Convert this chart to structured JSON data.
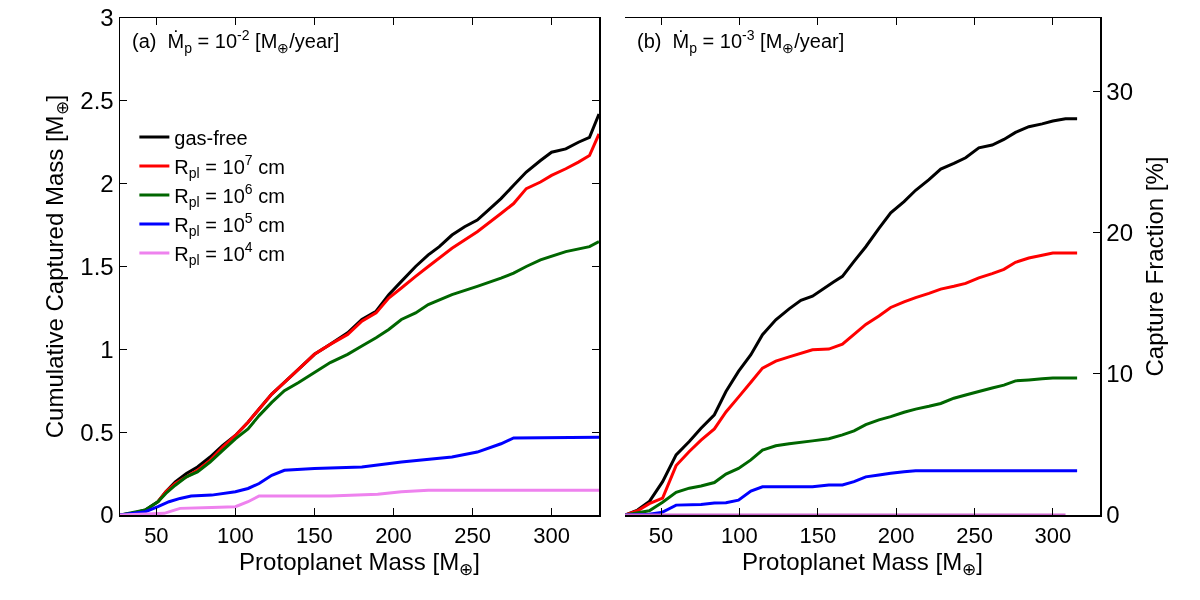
{
  "chart_data": [
    {
      "type": "line",
      "xlabel": "Protoplanet Mass [M$_{⊕}$]",
      "ylabel": "Cumulative Captured Mass [M$_{⊕}$]",
      "annotations": [
        "(a)  Ṁ$_{p}$ = 10$^{-2}$ [M$_{⊕}$/year]"
      ],
      "xlim": [
        27,
        330
      ],
      "xticks": [
        50,
        100,
        150,
        200,
        250,
        300
      ],
      "ylim": [
        0,
        3
      ],
      "yticks": [
        0,
        0.5,
        1,
        1.5,
        2,
        2.5,
        3
      ],
      "legend": "top left",
      "series": [
        {
          "name": "gas-free",
          "color": "#000000",
          "x": [
            27,
            35,
            43,
            51,
            56,
            62,
            69,
            76,
            84,
            92,
            100,
            108,
            115,
            123,
            131,
            140,
            150,
            160,
            171,
            180,
            189,
            197,
            205,
            214,
            222,
            229,
            237,
            245,
            253,
            260,
            268,
            276,
            284,
            293,
            300,
            309,
            317,
            324,
            330
          ],
          "values": [
            0,
            0.01,
            0.03,
            0.08,
            0.14,
            0.2,
            0.25,
            0.29,
            0.35,
            0.42,
            0.48,
            0.56,
            0.64,
            0.73,
            0.8,
            0.88,
            0.97,
            1.03,
            1.1,
            1.18,
            1.23,
            1.33,
            1.41,
            1.5,
            1.57,
            1.62,
            1.69,
            1.74,
            1.78,
            1.84,
            1.91,
            1.99,
            2.07,
            2.14,
            2.19,
            2.21,
            2.25,
            2.28,
            2.42
          ]
        },
        {
          "name": "R$_{pl}$ = 10$^{7}$ cm",
          "color": "#ff0000",
          "x": [
            51,
            56,
            62,
            69,
            76,
            84,
            92,
            100,
            108,
            115,
            123,
            131,
            140,
            150,
            160,
            171,
            180,
            189,
            197,
            205,
            214,
            222,
            237,
            253,
            268,
            276,
            284,
            293,
            300,
            309,
            317,
            324,
            330
          ],
          "values": [
            0.08,
            0.14,
            0.19,
            0.23,
            0.27,
            0.33,
            0.41,
            0.48,
            0.56,
            0.64,
            0.73,
            0.8,
            0.88,
            0.97,
            1.03,
            1.09,
            1.17,
            1.22,
            1.31,
            1.37,
            1.44,
            1.5,
            1.61,
            1.71,
            1.82,
            1.88,
            1.97,
            2.01,
            2.05,
            2.09,
            2.13,
            2.17,
            2.3
          ]
        },
        {
          "name": "R$_{pl}$ = 10$^{6}$ cm",
          "color": "#006600",
          "x": [
            27,
            43,
            51,
            56,
            62,
            69,
            76,
            84,
            92,
            100,
            108,
            115,
            123,
            131,
            140,
            150,
            160,
            171,
            180,
            189,
            197,
            205,
            214,
            222,
            237,
            253,
            268,
            276,
            284,
            293,
            309,
            324,
            330
          ],
          "values": [
            0,
            0.03,
            0.08,
            0.13,
            0.18,
            0.23,
            0.26,
            0.32,
            0.39,
            0.46,
            0.52,
            0.6,
            0.68,
            0.75,
            0.8,
            0.86,
            0.92,
            0.97,
            1.02,
            1.07,
            1.12,
            1.18,
            1.22,
            1.27,
            1.33,
            1.38,
            1.43,
            1.46,
            1.5,
            1.54,
            1.59,
            1.62,
            1.65
          ]
        },
        {
          "name": "R$_{pl}$ = 10$^{5}$ cm",
          "color": "#0000ff",
          "x": [
            27,
            43,
            51,
            58,
            65,
            72,
            85,
            100,
            108,
            115,
            123,
            131,
            150,
            180,
            205,
            237,
            253,
            268,
            276,
            330
          ],
          "values": [
            0,
            0.02,
            0.05,
            0.08,
            0.1,
            0.115,
            0.12,
            0.14,
            0.16,
            0.19,
            0.24,
            0.27,
            0.28,
            0.29,
            0.32,
            0.35,
            0.38,
            0.43,
            0.465,
            0.47
          ]
        },
        {
          "name": "R$_{pl}$ = 10$^{4}$ cm",
          "color": "#ee82ee",
          "x": [
            27,
            55,
            65,
            85,
            100,
            108,
            115,
            160,
            190,
            205,
            222,
            330
          ],
          "values": [
            0,
            0.01,
            0.04,
            0.045,
            0.05,
            0.08,
            0.115,
            0.115,
            0.125,
            0.14,
            0.15,
            0.15
          ]
        }
      ]
    },
    {
      "type": "line",
      "xlabel": "Protoplanet Mass [M$_{⊕}$]",
      "y2label": "Capture Fraction [%]",
      "annotations": [
        "(b)  Ṁ$_{p}$ = 10$^{-3}$ [M$_{⊕}$/year]"
      ],
      "xlim": [
        27,
        330
      ],
      "xticks": [
        50,
        100,
        150,
        200,
        250,
        300
      ],
      "y2lim": [
        0,
        35.2
      ],
      "y2ticks": [
        0,
        10,
        20,
        30
      ],
      "series": [
        {
          "color": "#000000",
          "axis": "y2",
          "x": [
            27,
            35,
            42.5,
            51,
            59.6,
            68,
            75.5,
            84,
            91.4,
            99.4,
            107.3,
            114.7,
            123.2,
            131.7,
            139.2,
            146.6,
            160,
            165.7,
            173.1,
            180.6,
            189,
            196.5,
            205,
            212.4,
            220.9,
            228.4,
            236.8,
            244.3,
            252.7,
            261.2,
            268.7,
            276.1,
            284.6,
            293.1,
            299.9,
            308,
            315.4
          ],
          "values": [
            0,
            0.35,
            0.95,
            2.36,
            4.26,
            5.2,
            6.15,
            7.1,
            8.75,
            10.17,
            11.35,
            12.77,
            13.83,
            14.6,
            15.2,
            15.5,
            16.5,
            16.9,
            17.96,
            19,
            20.3,
            21.4,
            22.2,
            23,
            23.75,
            24.5,
            24.9,
            25.3,
            26,
            26.2,
            26.6,
            27.1,
            27.5,
            27.7,
            27.9,
            28.06,
            28.06
          ]
        },
        {
          "color": "#ff0000",
          "axis": "y2",
          "x": [
            27,
            35,
            42.5,
            51,
            59.6,
            68,
            75.5,
            84,
            91.4,
            99.4,
            107.3,
            114.7,
            123.2,
            131.7,
            146.6,
            157,
            165.7,
            173.1,
            180.6,
            189,
            196.5,
            205,
            212.4,
            220.9,
            228.4,
            236.8,
            244.3,
            252.7,
            261.2,
            268.7,
            276.1,
            284.6,
            293.1,
            299.9,
            315.4
          ],
          "values": [
            0,
            0.3,
            0.8,
            1.2,
            3.5,
            4.5,
            5.3,
            6.1,
            7.3,
            8.35,
            9.4,
            10.4,
            10.9,
            11.2,
            11.7,
            11.75,
            12.1,
            12.8,
            13.5,
            14.1,
            14.7,
            15.1,
            15.4,
            15.7,
            16,
            16.2,
            16.4,
            16.8,
            17.1,
            17.4,
            17.9,
            18.2,
            18.4,
            18.56,
            18.56
          ]
        },
        {
          "color": "#006600",
          "axis": "y2",
          "x": [
            27,
            42.5,
            51,
            59.6,
            68,
            75.5,
            84,
            91.4,
            99.4,
            107.3,
            114.7,
            123.2,
            131.7,
            146.6,
            157,
            165.7,
            173.1,
            180.6,
            189,
            196.5,
            205,
            212.4,
            220.9,
            228.4,
            236.8,
            244.3,
            252.7,
            261.2,
            268.7,
            276.1,
            284.6,
            293.1,
            299.9,
            315.4
          ],
          "values": [
            0,
            0.3,
            0.9,
            1.6,
            1.9,
            2.05,
            2.3,
            2.9,
            3.3,
            3.9,
            4.6,
            4.9,
            5.05,
            5.25,
            5.4,
            5.67,
            5.96,
            6.4,
            6.74,
            6.97,
            7.28,
            7.5,
            7.7,
            7.9,
            8.27,
            8.5,
            8.75,
            9,
            9.2,
            9.5,
            9.57,
            9.65,
            9.7,
            9.7
          ]
        },
        {
          "color": "#0000ff",
          "axis": "y2",
          "x": [
            27,
            42.5,
            51,
            59.6,
            75.5,
            84,
            91.4,
            99.4,
            107.3,
            114.7,
            131.7,
            146.6,
            157,
            165.7,
            173.1,
            180.6,
            189,
            196.5,
            205,
            212.4,
            315.4
          ],
          "values": [
            0,
            0.05,
            0.2,
            0.7,
            0.75,
            0.85,
            0.87,
            1.05,
            1.7,
            2,
            2,
            2,
            2.13,
            2.13,
            2.36,
            2.7,
            2.84,
            2.95,
            3.07,
            3.14,
            3.14
          ]
        },
        {
          "color": "#cc66cc",
          "axis": "y2",
          "x": [
            27,
            308
          ],
          "values": [
            0,
            0
          ]
        }
      ]
    }
  ]
}
